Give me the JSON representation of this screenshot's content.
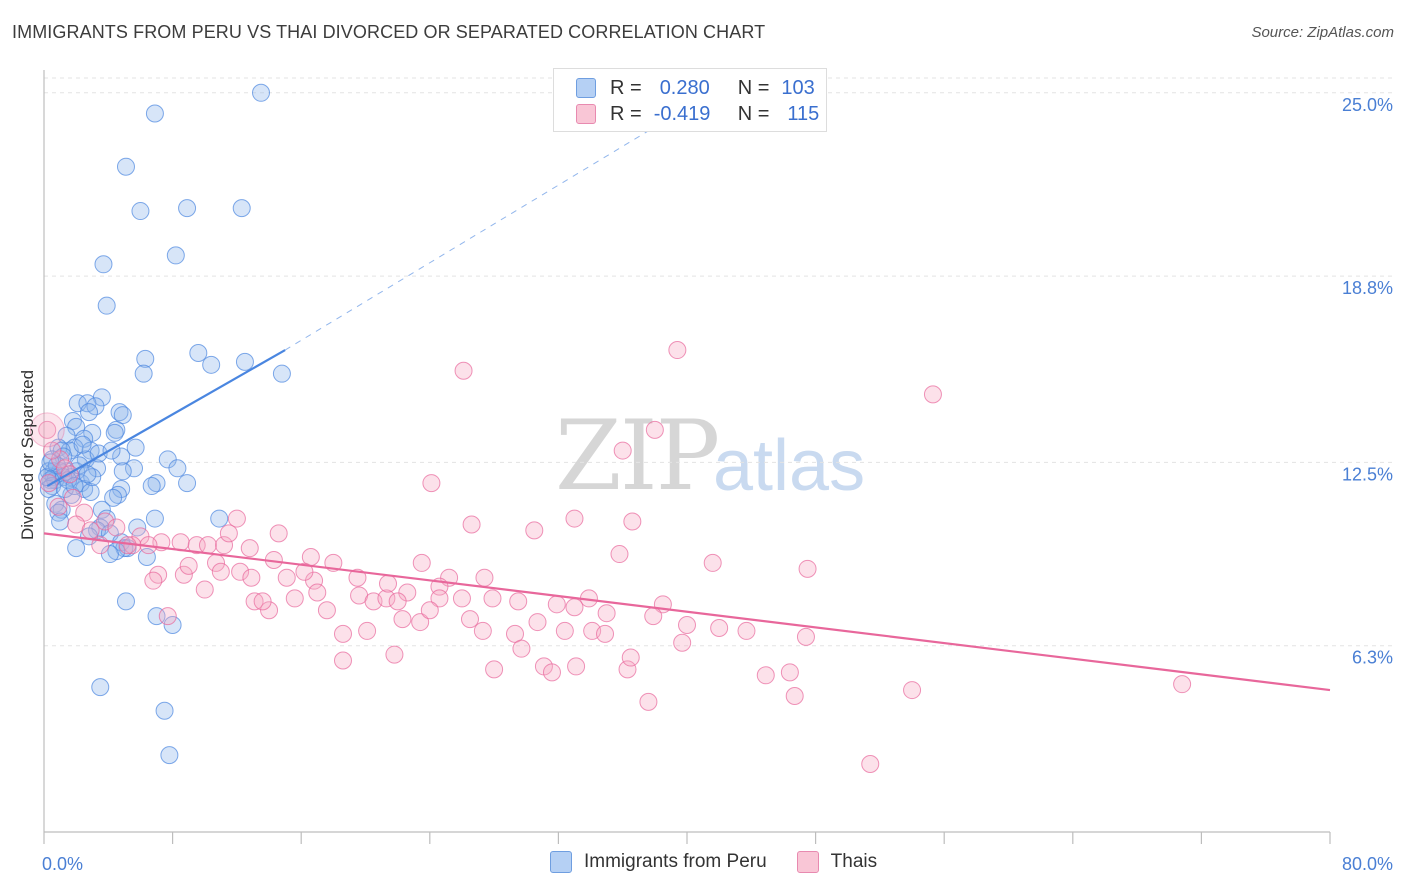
{
  "title": "IMMIGRANTS FROM PERU VS THAI DIVORCED OR SEPARATED CORRELATION CHART",
  "source": "Source: ZipAtlas.com",
  "watermark": {
    "zip": "ZIP",
    "atlas": "atlas"
  },
  "legend": {
    "rows": [
      {
        "r_label": "R =",
        "r_value": "0.280",
        "n_label": "N =",
        "n_value": "103",
        "color": "#a9c8f2"
      },
      {
        "r_label": "R =",
        "r_value": "-0.419",
        "n_label": "N =",
        "n_value": "115",
        "color": "#f7b8cc"
      }
    ]
  },
  "bottom_legend": [
    {
      "label": "Immigrants from Peru",
      "color": "#a9c8f2"
    },
    {
      "label": "Thais",
      "color": "#f7b8cc"
    }
  ],
  "chart_data": {
    "type": "scatter",
    "title": "IMMIGRANTS FROM PERU VS THAI DIVORCED OR SEPARATED CORRELATION CHART",
    "xlabel": "",
    "ylabel": "Divorced or Separated",
    "xlim": [
      0,
      80
    ],
    "ylim": [
      0,
      25.5
    ],
    "x_tick_labels": [
      "0.0%",
      "80.0%"
    ],
    "y_ticks": [
      6.3,
      12.5,
      18.8,
      25.0
    ],
    "y_tick_labels": [
      "6.3%",
      "12.5%",
      "18.8%",
      "25.0%"
    ],
    "grid": true,
    "series": [
      {
        "name": "Immigrants from Peru",
        "color": "#4a86e0",
        "fill": "rgba(140,180,235,0.35)",
        "trend": {
          "x": [
            0.2,
            15.0
          ],
          "y": [
            11.7,
            16.3
          ],
          "dashed_to": {
            "x": 40.0,
            "y": 24.5
          }
        },
        "points": [
          [
            13.5,
            25.0
          ],
          [
            6.9,
            24.3
          ],
          [
            5.1,
            22.5
          ],
          [
            6.0,
            21.0
          ],
          [
            8.9,
            21.1
          ],
          [
            12.3,
            21.1
          ],
          [
            8.2,
            19.5
          ],
          [
            3.7,
            19.2
          ],
          [
            3.9,
            17.8
          ],
          [
            9.6,
            16.2
          ],
          [
            10.4,
            15.8
          ],
          [
            6.3,
            16.0
          ],
          [
            6.2,
            15.5
          ],
          [
            12.5,
            15.9
          ],
          [
            14.8,
            15.5
          ],
          [
            3.6,
            14.7
          ],
          [
            2.1,
            14.5
          ],
          [
            2.7,
            14.5
          ],
          [
            3.2,
            14.4
          ],
          [
            2.8,
            14.2
          ],
          [
            4.7,
            14.2
          ],
          [
            4.9,
            14.1
          ],
          [
            1.8,
            13.9
          ],
          [
            2.0,
            13.7
          ],
          [
            4.5,
            13.6
          ],
          [
            4.4,
            13.5
          ],
          [
            3.0,
            13.5
          ],
          [
            1.4,
            13.4
          ],
          [
            2.5,
            13.3
          ],
          [
            1.9,
            13.0
          ],
          [
            0.9,
            13.0
          ],
          [
            1.6,
            12.9
          ],
          [
            1.1,
            12.9
          ],
          [
            2.9,
            12.9
          ],
          [
            4.8,
            12.7
          ],
          [
            5.7,
            13.0
          ],
          [
            1.2,
            12.7
          ],
          [
            0.5,
            12.6
          ],
          [
            7.7,
            12.6
          ],
          [
            2.6,
            12.6
          ],
          [
            5.6,
            12.3
          ],
          [
            3.3,
            12.3
          ],
          [
            2.0,
            12.2
          ],
          [
            1.4,
            12.2
          ],
          [
            1.0,
            12.2
          ],
          [
            0.6,
            12.2
          ],
          [
            0.3,
            12.2
          ],
          [
            8.3,
            12.3
          ],
          [
            4.9,
            12.2
          ],
          [
            0.6,
            12.0
          ],
          [
            1.7,
            12.0
          ],
          [
            1.2,
            12.0
          ],
          [
            0.7,
            11.9
          ],
          [
            0.4,
            11.9
          ],
          [
            2.3,
            11.8
          ],
          [
            8.9,
            11.8
          ],
          [
            7.0,
            11.8
          ],
          [
            6.7,
            11.7
          ],
          [
            2.5,
            11.6
          ],
          [
            4.8,
            11.6
          ],
          [
            0.5,
            11.7
          ],
          [
            0.3,
            11.6
          ],
          [
            2.9,
            11.5
          ],
          [
            1.7,
            11.4
          ],
          [
            4.6,
            11.4
          ],
          [
            4.3,
            11.3
          ],
          [
            0.7,
            11.1
          ],
          [
            1.1,
            10.9
          ],
          [
            3.6,
            10.9
          ],
          [
            0.9,
            10.8
          ],
          [
            3.9,
            10.6
          ],
          [
            6.9,
            10.6
          ],
          [
            10.9,
            10.6
          ],
          [
            1.0,
            10.5
          ],
          [
            3.5,
            10.3
          ],
          [
            5.8,
            10.3
          ],
          [
            3.3,
            10.2
          ],
          [
            4.1,
            10.1
          ],
          [
            2.8,
            10.0
          ],
          [
            4.8,
            9.8
          ],
          [
            5.2,
            9.6
          ],
          [
            5.0,
            9.6
          ],
          [
            4.5,
            9.5
          ],
          [
            6.4,
            9.3
          ],
          [
            4.1,
            9.4
          ],
          [
            2.0,
            9.6
          ],
          [
            5.1,
            7.8
          ],
          [
            7.0,
            7.3
          ],
          [
            8.0,
            7.0
          ],
          [
            3.5,
            4.9
          ],
          [
            7.5,
            4.1
          ],
          [
            7.8,
            2.6
          ],
          [
            1.5,
            11.9
          ],
          [
            2.2,
            12.4
          ],
          [
            3.0,
            12.0
          ],
          [
            0.8,
            12.4
          ],
          [
            1.3,
            11.6
          ],
          [
            2.4,
            13.1
          ],
          [
            3.4,
            12.8
          ],
          [
            0.2,
            12.0
          ],
          [
            1.9,
            11.7
          ],
          [
            2.7,
            12.1
          ],
          [
            4.2,
            12.9
          ],
          [
            0.4,
            12.5
          ]
        ]
      },
      {
        "name": "Thais",
        "color": "#e8679b",
        "fill": "rgba(245,170,195,0.35)",
        "trend": {
          "x": [
            0.0,
            80.0
          ],
          "y": [
            10.1,
            4.8
          ]
        },
        "points": [
          [
            0.2,
            13.6
          ],
          [
            39.4,
            16.3
          ],
          [
            26.1,
            15.6
          ],
          [
            55.3,
            14.8
          ],
          [
            38.0,
            13.6
          ],
          [
            36.0,
            12.9
          ],
          [
            24.1,
            11.8
          ],
          [
            12.0,
            10.6
          ],
          [
            26.6,
            10.4
          ],
          [
            33.0,
            10.6
          ],
          [
            36.6,
            10.5
          ],
          [
            30.5,
            10.2
          ],
          [
            14.6,
            10.1
          ],
          [
            1.8,
            11.3
          ],
          [
            2.5,
            10.8
          ],
          [
            3.8,
            10.5
          ],
          [
            4.5,
            10.3
          ],
          [
            6.0,
            10.0
          ],
          [
            7.3,
            9.8
          ],
          [
            8.5,
            9.8
          ],
          [
            9.5,
            9.7
          ],
          [
            10.2,
            9.7
          ],
          [
            11.2,
            9.7
          ],
          [
            12.8,
            9.6
          ],
          [
            5.5,
            9.7
          ],
          [
            6.5,
            9.7
          ],
          [
            16.6,
            9.3
          ],
          [
            14.3,
            9.2
          ],
          [
            18.0,
            9.1
          ],
          [
            10.7,
            9.1
          ],
          [
            11.0,
            8.8
          ],
          [
            12.2,
            8.8
          ],
          [
            15.1,
            8.6
          ],
          [
            16.8,
            8.5
          ],
          [
            23.5,
            9.1
          ],
          [
            35.8,
            9.4
          ],
          [
            41.6,
            9.1
          ],
          [
            47.5,
            8.9
          ],
          [
            27.4,
            8.6
          ],
          [
            25.2,
            8.6
          ],
          [
            24.6,
            8.3
          ],
          [
            22.6,
            8.1
          ],
          [
            19.6,
            8.0
          ],
          [
            20.5,
            7.8
          ],
          [
            21.3,
            7.9
          ],
          [
            22.0,
            7.8
          ],
          [
            24.6,
            7.9
          ],
          [
            26.0,
            7.9
          ],
          [
            27.9,
            7.9
          ],
          [
            29.5,
            7.8
          ],
          [
            31.9,
            7.7
          ],
          [
            33.0,
            7.6
          ],
          [
            33.9,
            7.9
          ],
          [
            38.5,
            7.7
          ],
          [
            15.6,
            7.9
          ],
          [
            13.1,
            7.8
          ],
          [
            14.0,
            7.5
          ],
          [
            17.6,
            7.5
          ],
          [
            22.3,
            7.2
          ],
          [
            23.4,
            7.1
          ],
          [
            20.1,
            6.8
          ],
          [
            18.6,
            6.7
          ],
          [
            27.3,
            6.8
          ],
          [
            29.3,
            6.7
          ],
          [
            32.4,
            6.8
          ],
          [
            34.1,
            6.8
          ],
          [
            34.9,
            6.7
          ],
          [
            43.7,
            6.8
          ],
          [
            47.4,
            6.6
          ],
          [
            39.7,
            6.4
          ],
          [
            21.8,
            6.0
          ],
          [
            18.6,
            5.8
          ],
          [
            29.7,
            6.2
          ],
          [
            31.1,
            5.6
          ],
          [
            31.6,
            5.4
          ],
          [
            28.0,
            5.5
          ],
          [
            36.3,
            5.5
          ],
          [
            33.1,
            5.6
          ],
          [
            36.5,
            5.9
          ],
          [
            37.6,
            4.4
          ],
          [
            46.4,
            5.4
          ],
          [
            44.9,
            5.3
          ],
          [
            54.0,
            4.8
          ],
          [
            46.7,
            4.6
          ],
          [
            51.4,
            2.3
          ],
          [
            70.8,
            5.0
          ],
          [
            7.7,
            7.3
          ],
          [
            11.5,
            10.1
          ],
          [
            3.5,
            9.7
          ],
          [
            2.0,
            10.4
          ],
          [
            1.0,
            12.6
          ],
          [
            0.5,
            12.9
          ],
          [
            0.3,
            11.8
          ],
          [
            1.3,
            12.3
          ],
          [
            5.2,
            9.7
          ],
          [
            7.1,
            8.7
          ],
          [
            8.7,
            8.7
          ],
          [
            12.9,
            8.6
          ],
          [
            16.2,
            8.8
          ],
          [
            19.5,
            8.6
          ],
          [
            21.4,
            8.4
          ],
          [
            17.0,
            8.1
          ],
          [
            24.0,
            7.5
          ],
          [
            26.5,
            7.2
          ],
          [
            30.7,
            7.1
          ],
          [
            35.0,
            7.4
          ],
          [
            37.9,
            7.3
          ],
          [
            40.0,
            7.0
          ],
          [
            42.0,
            6.9
          ],
          [
            10.0,
            8.2
          ],
          [
            13.6,
            7.8
          ],
          [
            6.8,
            8.5
          ],
          [
            9.0,
            9.0
          ],
          [
            0.9,
            11.0
          ],
          [
            1.6,
            12.1
          ],
          [
            2.9,
            10.2
          ]
        ]
      }
    ]
  }
}
